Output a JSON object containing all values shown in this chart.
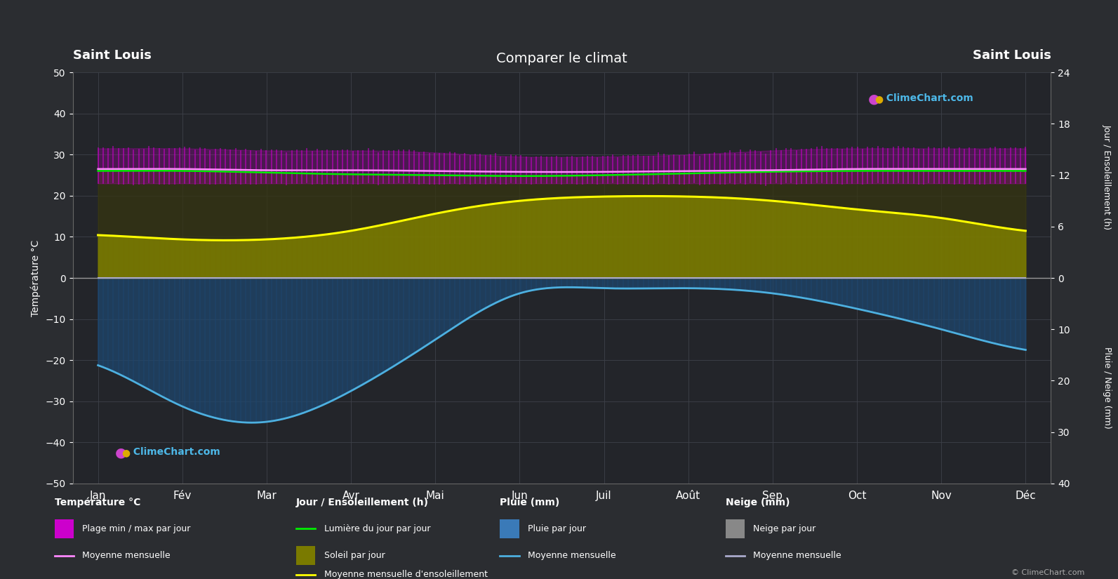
{
  "title": "Comparer le climat",
  "left_label_top": "Saint Louis",
  "right_label_top": "Saint Louis",
  "ylabel_left": "Température °C",
  "ylabel_right_top": "Jour / Ensoleillement (h)",
  "ylabel_right_bottom": "Pluie / Neige (mm)",
  "months": [
    "Jan",
    "Fév",
    "Mar",
    "Avr",
    "Mai",
    "Jun",
    "Juil",
    "Août",
    "Sep",
    "Oct",
    "Nov",
    "Déc"
  ],
  "temp_ylim": [
    -50,
    50
  ],
  "bg_color": "#2b2d31",
  "plot_bg_color": "#23252a",
  "grid_color": "#3d4048",
  "temp_daily_min": [
    23.0,
    23.0,
    23.0,
    23.0,
    23.0,
    23.0,
    23.0,
    23.0,
    23.0,
    23.0,
    23.0,
    23.0
  ],
  "temp_daily_max": [
    31.5,
    31.5,
    31.0,
    31.0,
    30.5,
    29.5,
    29.5,
    30.0,
    31.0,
    31.5,
    31.5,
    31.5
  ],
  "temp_avg": [
    26.5,
    26.5,
    26.2,
    26.2,
    26.0,
    25.8,
    25.8,
    26.0,
    26.2,
    26.5,
    26.5,
    26.5
  ],
  "daylight_h": [
    12.5,
    12.5,
    12.3,
    12.1,
    12.0,
    11.9,
    12.0,
    12.2,
    12.4,
    12.5,
    12.5,
    12.5
  ],
  "sunshine_h": [
    5.0,
    4.5,
    4.5,
    5.5,
    7.5,
    9.0,
    9.5,
    9.5,
    9.0,
    8.0,
    7.0,
    5.5
  ],
  "rain_mm": [
    17,
    25,
    28,
    22,
    12,
    3,
    2,
    2,
    3,
    6,
    10,
    14
  ],
  "snow_mm": [
    0,
    0,
    0,
    0,
    0,
    0,
    0,
    0,
    0,
    0,
    0,
    0
  ],
  "color_temp_bar": "#bb00bb",
  "color_temp_fill": "#990099",
  "color_temp_avg_line": "#ff88ff",
  "color_daylight_line": "#00ee00",
  "color_sunshine_fill": "#7a7a00",
  "color_sunshine_line": "#ffff00",
  "color_rain_fill": "#1e4870",
  "color_rain_line": "#4db0e0",
  "color_snow_fill": "#555566",
  "color_snow_line": "#aaaacc",
  "logo_color": "#4db8e8"
}
